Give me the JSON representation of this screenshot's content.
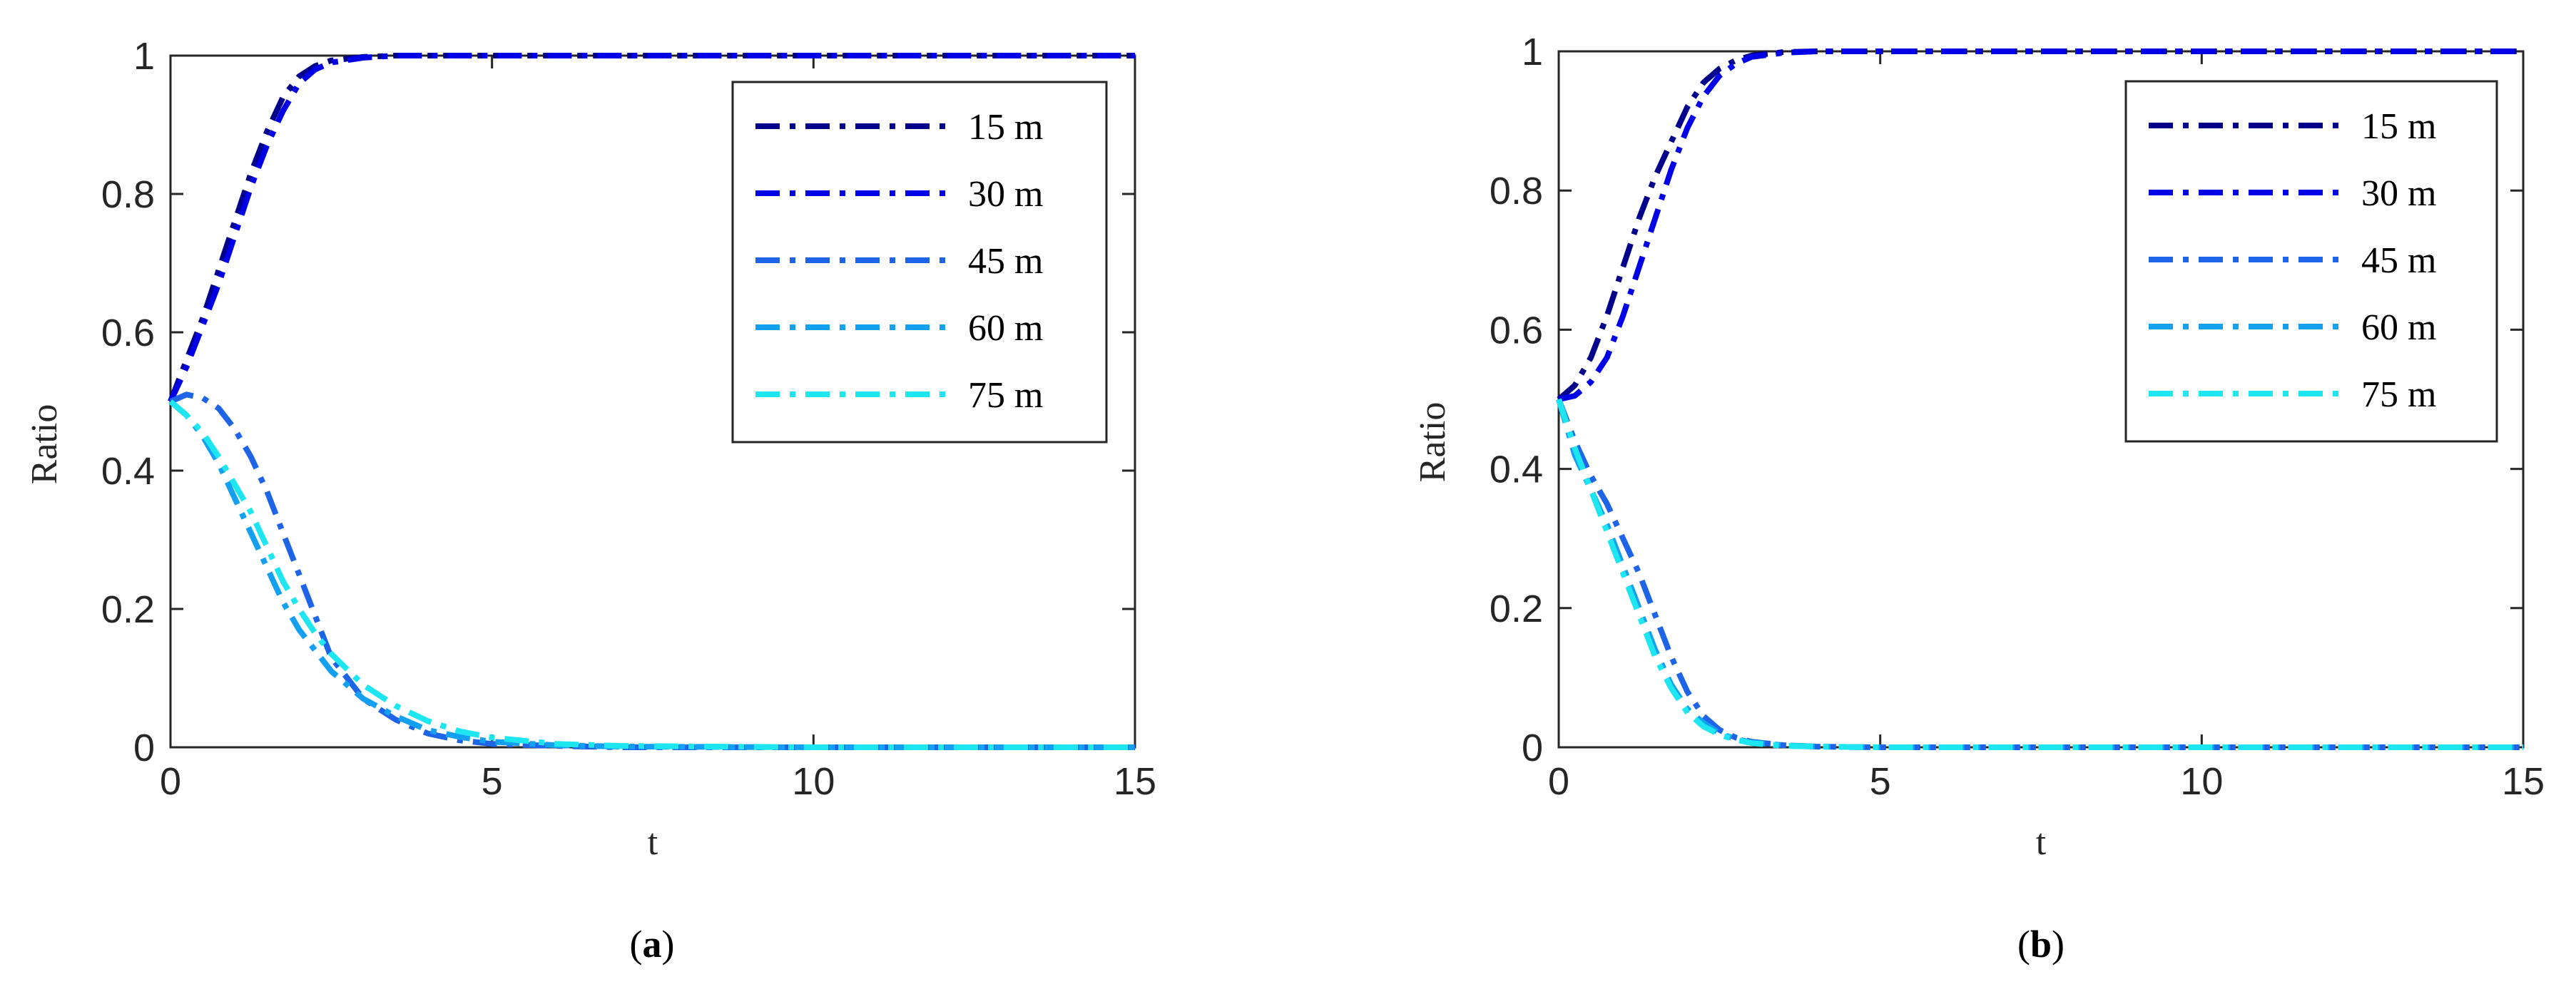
{
  "colors": {
    "15 m": "#00008B",
    "30 m": "#0000E6",
    "45 m": "#1E64E6",
    "60 m": "#14A0F0",
    "75 m": "#1EE6F0"
  },
  "chart_data": [
    {
      "type": "line",
      "panel": "a",
      "caption": {
        "open": "(",
        "letter": "a",
        "close": ")"
      },
      "xlabel": "t",
      "ylabel": "Ratio",
      "xlim": [
        0,
        15
      ],
      "ylim": [
        0,
        1
      ],
      "xticks": [
        0,
        5,
        10,
        15
      ],
      "yticks": [
        0,
        0.2,
        0.4,
        0.6,
        0.8,
        1
      ],
      "xtick_labels": [
        "0",
        "5",
        "10",
        "15"
      ],
      "ytick_labels": [
        "0",
        "0.2",
        "0.4",
        "0.6",
        "0.8",
        "1"
      ],
      "legend_position": "top-right",
      "grid": false,
      "line_style": "dash-dot",
      "series": [
        {
          "name": "15 m",
          "x": [
            0,
            0.25,
            0.5,
            0.75,
            1,
            1.25,
            1.5,
            1.75,
            2,
            2.25,
            2.5,
            3,
            3.5,
            4,
            5,
            7,
            10,
            15
          ],
          "y": [
            0.5,
            0.56,
            0.62,
            0.69,
            0.76,
            0.83,
            0.89,
            0.94,
            0.97,
            0.985,
            0.993,
            0.998,
            1,
            1,
            1,
            1,
            1,
            1
          ]
        },
        {
          "name": "30 m",
          "x": [
            0,
            0.25,
            0.5,
            0.75,
            1,
            1.25,
            1.5,
            1.75,
            2,
            2.25,
            2.5,
            3,
            3.5,
            4,
            5,
            7,
            10,
            15
          ],
          "y": [
            0.5,
            0.55,
            0.61,
            0.67,
            0.74,
            0.81,
            0.87,
            0.92,
            0.96,
            0.98,
            0.99,
            0.997,
            1,
            1,
            1,
            1,
            1,
            1
          ]
        },
        {
          "name": "45 m",
          "x": [
            0,
            0.25,
            0.5,
            0.75,
            1,
            1.25,
            1.5,
            1.75,
            2,
            2.25,
            2.5,
            3,
            3.5,
            4,
            4.5,
            5,
            6,
            7,
            10,
            15
          ],
          "y": [
            0.5,
            0.51,
            0.505,
            0.49,
            0.46,
            0.42,
            0.37,
            0.31,
            0.25,
            0.19,
            0.13,
            0.07,
            0.04,
            0.02,
            0.01,
            0.005,
            0.002,
            0,
            0,
            0
          ]
        },
        {
          "name": "60 m",
          "x": [
            0,
            0.25,
            0.5,
            0.75,
            1,
            1.25,
            1.5,
            1.75,
            2,
            2.25,
            2.5,
            3,
            3.5,
            4,
            4.5,
            5,
            6,
            7,
            10,
            15
          ],
          "y": [
            0.5,
            0.48,
            0.45,
            0.41,
            0.36,
            0.31,
            0.26,
            0.21,
            0.17,
            0.14,
            0.11,
            0.07,
            0.045,
            0.025,
            0.015,
            0.008,
            0.003,
            0.001,
            0,
            0
          ]
        },
        {
          "name": "75 m",
          "x": [
            0,
            0.25,
            0.5,
            0.75,
            1,
            1.25,
            1.5,
            1.75,
            2,
            2.25,
            2.5,
            3,
            3.5,
            4,
            4.5,
            5,
            6,
            7,
            10,
            15
          ],
          "y": [
            0.5,
            0.48,
            0.455,
            0.42,
            0.38,
            0.34,
            0.29,
            0.24,
            0.2,
            0.165,
            0.135,
            0.09,
            0.06,
            0.038,
            0.023,
            0.014,
            0.005,
            0.002,
            0,
            0
          ]
        }
      ]
    },
    {
      "type": "line",
      "panel": "b",
      "caption": {
        "open": "(",
        "letter": "b",
        "close": ")"
      },
      "xlabel": "t",
      "ylabel": "Ratio",
      "xlim": [
        0,
        15
      ],
      "ylim": [
        0,
        1
      ],
      "xticks": [
        0,
        5,
        10,
        15
      ],
      "yticks": [
        0,
        0.2,
        0.4,
        0.6,
        0.8,
        1
      ],
      "xtick_labels": [
        "0",
        "5",
        "10",
        "15"
      ],
      "ytick_labels": [
        "0",
        "0.2",
        "0.4",
        "0.6",
        "0.8",
        "1"
      ],
      "legend_position": "top-right",
      "grid": false,
      "line_style": "dash-dot",
      "series": [
        {
          "name": "15 m",
          "x": [
            0,
            0.25,
            0.5,
            0.75,
            1,
            1.25,
            1.5,
            1.75,
            2,
            2.25,
            2.5,
            2.75,
            3,
            3.5,
            4,
            5,
            7,
            10,
            15
          ],
          "y": [
            0.5,
            0.52,
            0.56,
            0.62,
            0.69,
            0.76,
            0.82,
            0.87,
            0.92,
            0.955,
            0.975,
            0.987,
            0.994,
            0.999,
            1,
            1,
            1,
            1,
            1
          ]
        },
        {
          "name": "30 m",
          "x": [
            0,
            0.25,
            0.5,
            0.75,
            1,
            1.25,
            1.5,
            1.75,
            2,
            2.25,
            2.5,
            2.75,
            3,
            3.5,
            4,
            5,
            7,
            10,
            15
          ],
          "y": [
            0.5,
            0.505,
            0.525,
            0.56,
            0.62,
            0.69,
            0.76,
            0.83,
            0.89,
            0.935,
            0.965,
            0.982,
            0.992,
            0.998,
            1,
            1,
            1,
            1,
            1
          ]
        },
        {
          "name": "45 m",
          "x": [
            0,
            0.25,
            0.5,
            0.75,
            1,
            1.25,
            1.5,
            1.75,
            2,
            2.25,
            2.5,
            2.75,
            3,
            3.5,
            4,
            5,
            7,
            10,
            15
          ],
          "y": [
            0.5,
            0.44,
            0.39,
            0.35,
            0.3,
            0.25,
            0.19,
            0.13,
            0.08,
            0.045,
            0.025,
            0.014,
            0.008,
            0.003,
            0.001,
            0,
            0,
            0,
            0
          ]
        },
        {
          "name": "60 m",
          "x": [
            0,
            0.25,
            0.5,
            0.75,
            1,
            1.25,
            1.5,
            1.75,
            2,
            2.25,
            2.5,
            2.75,
            3,
            3.5,
            4,
            5,
            7,
            10,
            15
          ],
          "y": [
            0.5,
            0.42,
            0.37,
            0.32,
            0.26,
            0.2,
            0.14,
            0.09,
            0.055,
            0.035,
            0.02,
            0.012,
            0.007,
            0.003,
            0.001,
            0,
            0,
            0,
            0
          ]
        },
        {
          "name": "75 m",
          "x": [
            0,
            0.25,
            0.5,
            0.75,
            1,
            1.25,
            1.5,
            1.75,
            2,
            2.25,
            2.5,
            2.75,
            3,
            3.5,
            4,
            5,
            7,
            10,
            15
          ],
          "y": [
            0.5,
            0.43,
            0.37,
            0.31,
            0.25,
            0.19,
            0.13,
            0.085,
            0.05,
            0.03,
            0.018,
            0.011,
            0.006,
            0.002,
            0.001,
            0,
            0,
            0,
            0
          ]
        }
      ]
    }
  ]
}
